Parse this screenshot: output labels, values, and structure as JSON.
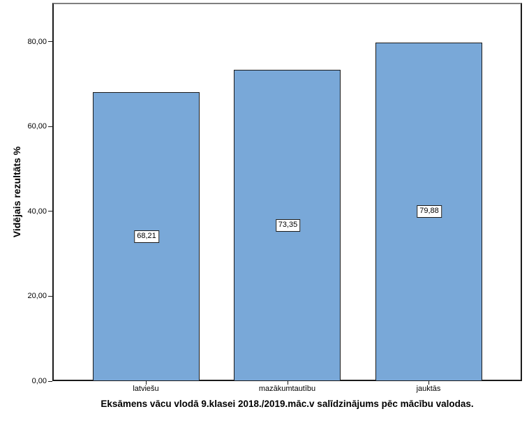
{
  "chart_data": {
    "type": "bar",
    "title": "Eksāmens vācu vlodā 9.klasei 2018./2019.māc.v salīdzinājums pēc mācību valodas.",
    "xlabel": "",
    "ylabel": "Vidējais rezultāts %",
    "categories": [
      "latviešu",
      "mazākumtautību",
      "jauktās"
    ],
    "values": [
      68.21,
      73.35,
      79.88
    ],
    "value_labels": [
      "68,21",
      "73,35",
      "79,88"
    ],
    "ytick_values": [
      0,
      20,
      40,
      60,
      80
    ],
    "ytick_labels": [
      "0,00",
      "20,00",
      "40,00",
      "60,00",
      "80,00"
    ],
    "ylim": [
      0,
      89.2
    ],
    "grid": false,
    "legend": "none",
    "colors": {
      "bar_fill": "#79a8d8",
      "bar_border": "#1a1a1a",
      "frame": "#1a1a1a",
      "frame_top": "#7f7f7f",
      "value_box_bg": "#ffffff",
      "background": "#ffffff",
      "text": "#000000"
    }
  }
}
